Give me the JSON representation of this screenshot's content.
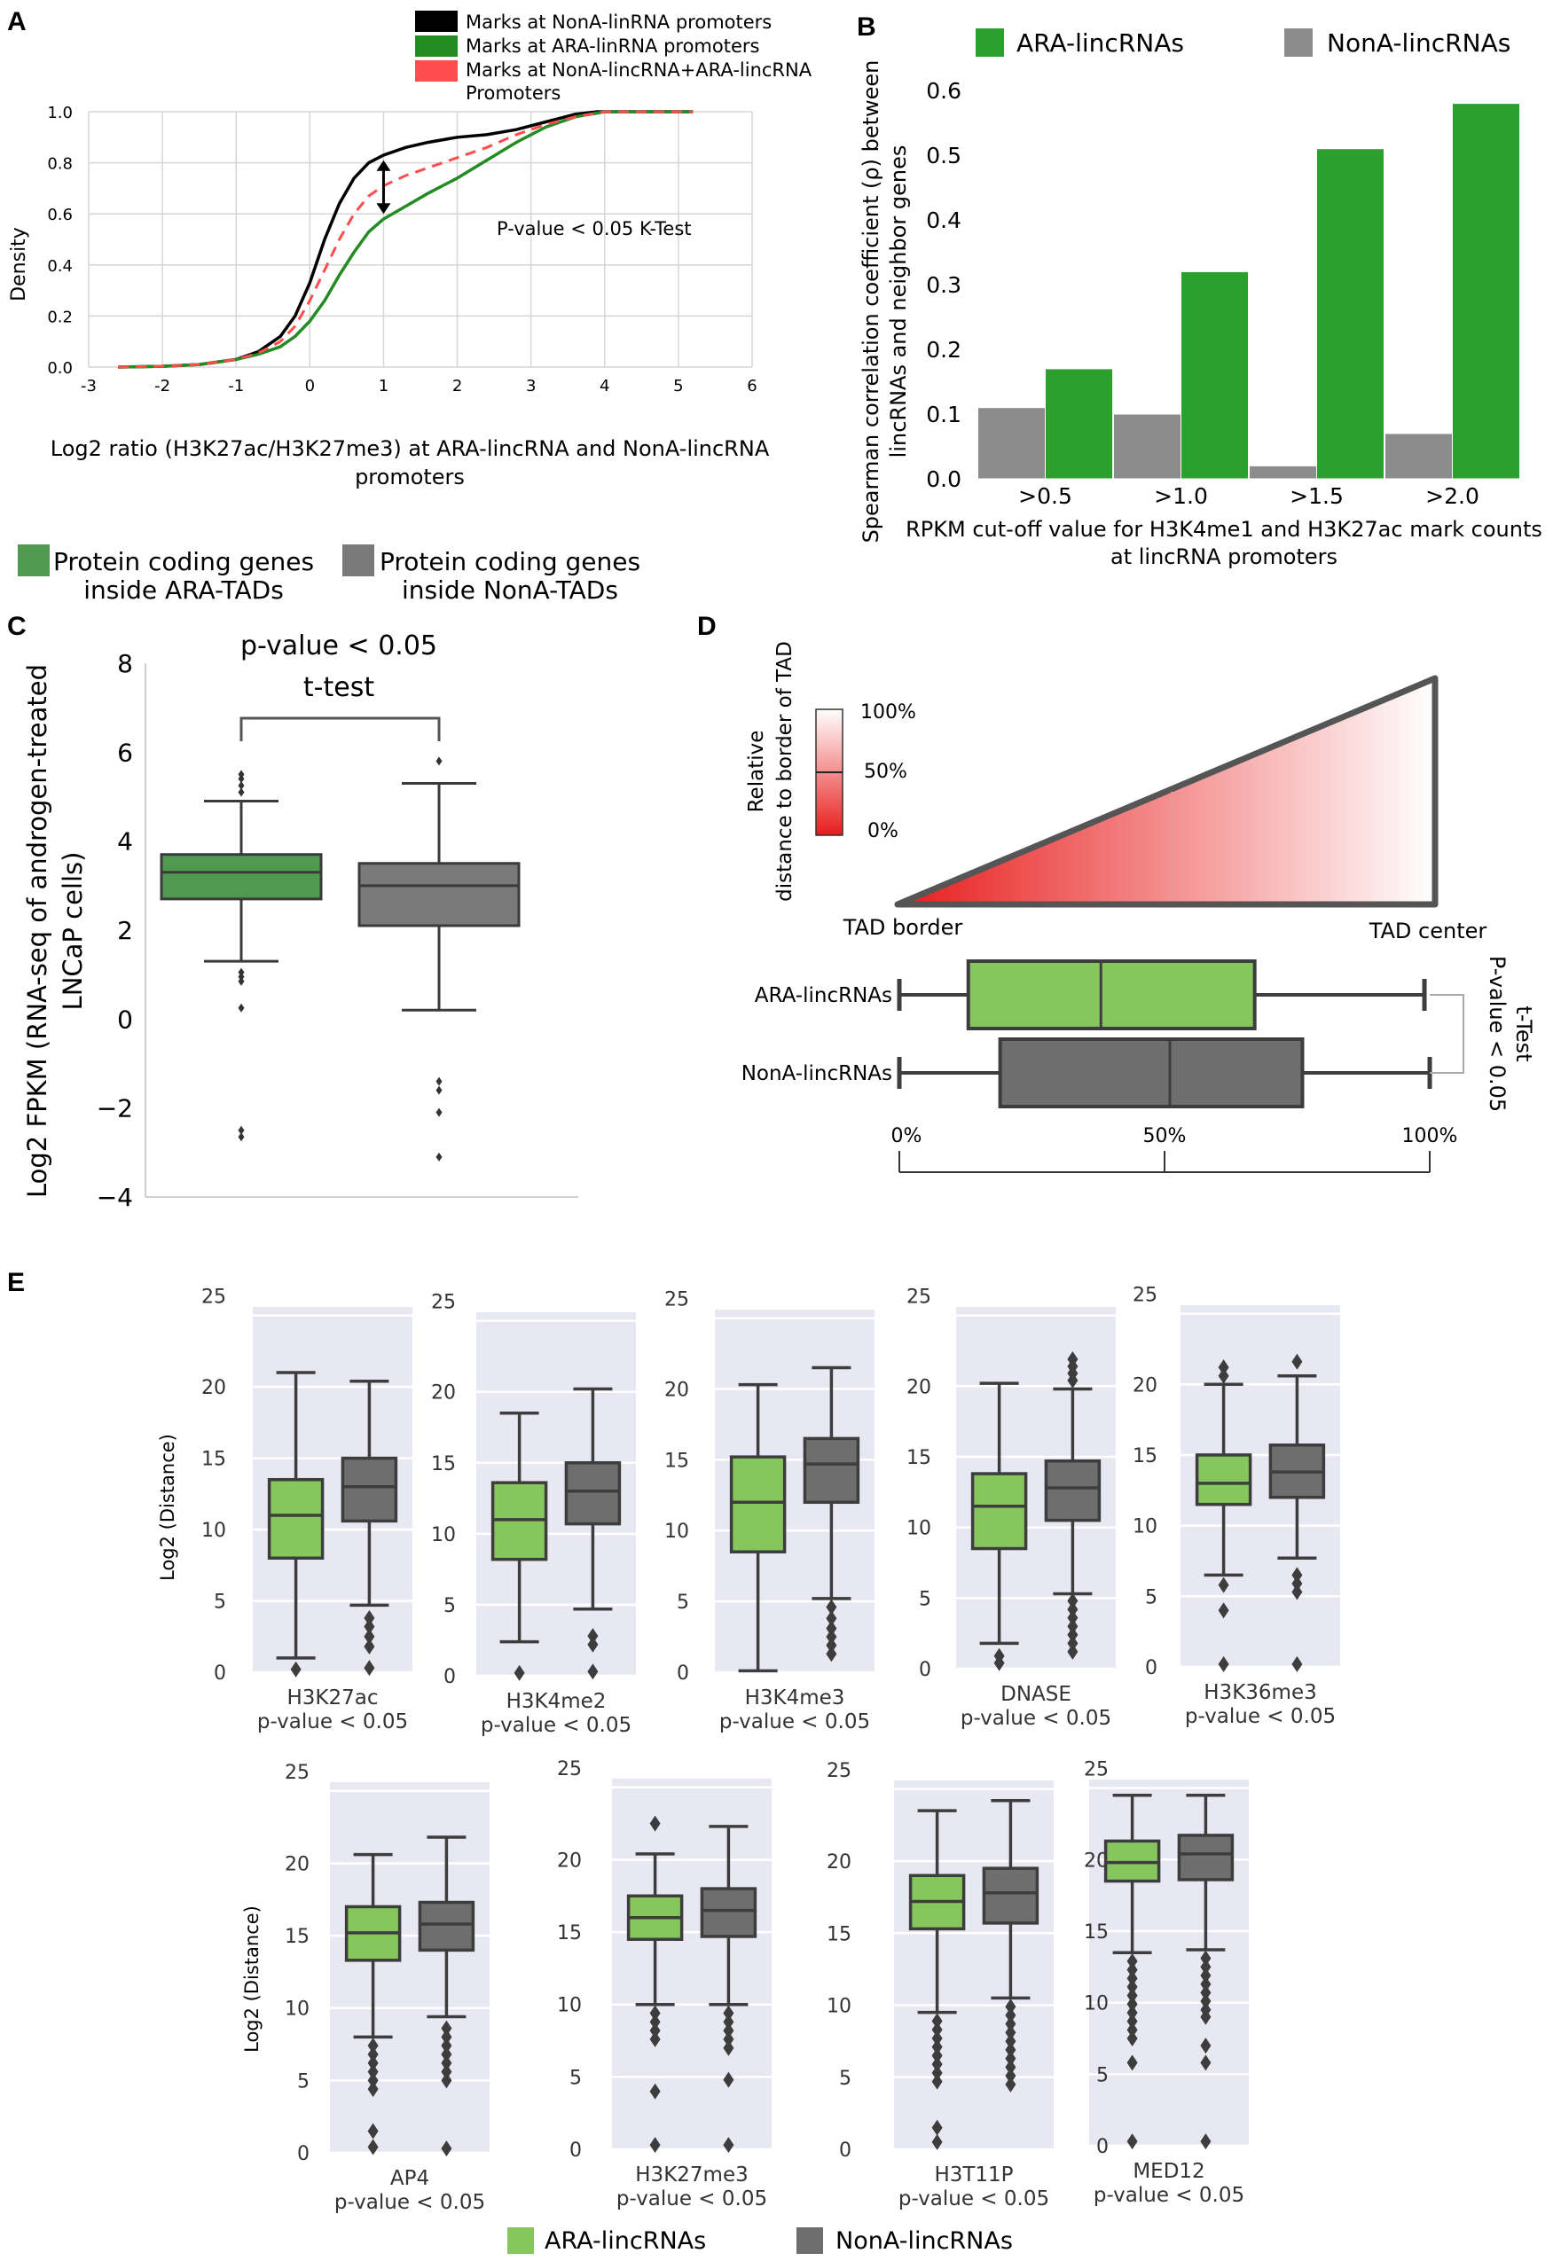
{
  "colors": {
    "black": "#000000",
    "green": "#228B22",
    "red": "#ff4c4c",
    "bar_green": "#2ca02c",
    "bar_gray": "#8c8c8c",
    "box_green": "#4f9a4f",
    "box_green_light": "#86c75d",
    "box_gray": "#7a7a7a",
    "box_gray_dark": "#6e6e6e",
    "e_bg": "#e8e8f2",
    "e_edge": "#3d3d3d"
  },
  "panel_labels": [
    "A",
    "B",
    "C",
    "D",
    "E"
  ],
  "panel_a": {
    "legend": [
      {
        "label": "Marks at NonA-linRNA promoters",
        "color": "#000000"
      },
      {
        "label": "Marks at ARA-linRNA promoters",
        "color": "#228B22"
      },
      {
        "label": "Marks at NonA-lincRNA+ARA-lincRNA",
        "color": "#ff4c4c"
      }
    ],
    "legend_extra": "Promoters",
    "annotation": "P-value < 0.05 K-Test",
    "xlabel_line1": "Log2 ratio (H3K27ac/H3K27me3) at ARA-lincRNA and NonA-lincRNA",
    "xlabel_line2": "promoters"
  },
  "panel_b": {
    "legend": [
      {
        "label": "ARA-lincRNAs",
        "color": "#2ca02c"
      },
      {
        "label": "NonA-lincRNAs",
        "color": "#8c8c8c"
      }
    ],
    "ylabel_line1": "Spearman correlation coefficient (ρ) between",
    "ylabel_line2": "lincRNAs and neighbor genes",
    "xlabel_line1": "RPKM cut-off value for H3K4me1 and H3K27ac mark counts",
    "xlabel_line2": "at lincRNA promoters"
  },
  "panel_c": {
    "legend": [
      {
        "line1": "Protein coding genes",
        "line2": "inside ARA-TADs",
        "color": "#4f9a4f"
      },
      {
        "line1": "Protein coding genes",
        "line2": "inside NonA-TADs",
        "color": "#7a7a7a"
      }
    ],
    "annotation_line1": "p-value < 0.05",
    "annotation_line2": "t-test",
    "ylabel_line1": "Log2 FPKM (RNA-seq of androgen-treated",
    "ylabel_line2": "LNCaP cells)"
  },
  "panel_d": {
    "scale_title_line1": "Relative",
    "scale_title_line2": "distance to border of TAD",
    "scale_labels": [
      "100%",
      "50%",
      "0%"
    ],
    "tad_border": "TAD border",
    "tad_center": "TAD center",
    "row_labels": [
      "ARA-lincRNAs",
      "NonA-lincRNAs"
    ],
    "axis_ticks": [
      "0%",
      "50%",
      "100%"
    ],
    "pvalue_line1": "P-value < 0.05",
    "pvalue_line2": "t-Test"
  },
  "panel_e": {
    "ylabel": "Log2 (Distance)",
    "pvalue": "p-value < 0.05",
    "legend": [
      {
        "label": "ARA-lincRNAs",
        "color": "#86c75d"
      },
      {
        "label": "NonA-lincRNAs",
        "color": "#6e6e6e"
      }
    ]
  },
  "chart_data": [
    {
      "panel": "A",
      "type": "line",
      "title": "",
      "xlabel": "Log2 ratio (H3K27ac/H3K27me3) at ARA-lincRNA and NonA-lincRNA promoters",
      "ylabel": "Density",
      "xlim": [
        -3,
        6
      ],
      "ylim": [
        0,
        1.0
      ],
      "xticks": [
        -3,
        -2,
        -1,
        0,
        1,
        2,
        3,
        4,
        5,
        6
      ],
      "yticks": [
        0.0,
        0.2,
        0.4,
        0.6,
        0.8,
        1.0
      ],
      "series": [
        {
          "name": "Marks at NonA-linRNA promoters",
          "color": "#000000",
          "dash": false,
          "x": [
            -2.6,
            -2,
            -1.5,
            -1,
            -0.7,
            -0.4,
            -0.2,
            0,
            0.2,
            0.4,
            0.6,
            0.8,
            1.0,
            1.3,
            1.6,
            2.0,
            2.4,
            2.8,
            3.2,
            3.6,
            3.9,
            4.5,
            5.2
          ],
          "y": [
            0.0,
            0.003,
            0.01,
            0.03,
            0.06,
            0.12,
            0.2,
            0.33,
            0.5,
            0.64,
            0.74,
            0.8,
            0.83,
            0.86,
            0.88,
            0.9,
            0.91,
            0.93,
            0.96,
            0.99,
            1.0,
            1.0,
            1.0
          ]
        },
        {
          "name": "Marks at ARA-linRNA promoters",
          "color": "#228B22",
          "dash": false,
          "x": [
            -2.6,
            -2,
            -1.5,
            -1,
            -0.7,
            -0.4,
            -0.2,
            0,
            0.2,
            0.4,
            0.6,
            0.8,
            1.0,
            1.3,
            1.6,
            2.0,
            2.4,
            2.8,
            3.2,
            3.6,
            4.0,
            4.5,
            5.2
          ],
          "y": [
            0.0,
            0.003,
            0.01,
            0.03,
            0.05,
            0.08,
            0.12,
            0.18,
            0.26,
            0.36,
            0.45,
            0.53,
            0.58,
            0.63,
            0.68,
            0.74,
            0.81,
            0.88,
            0.94,
            0.98,
            1.0,
            1.0,
            1.0
          ]
        },
        {
          "name": "Marks at NonA-lincRNA+ARA-lincRNA Promoters",
          "color": "#ff4c4c",
          "dash": true,
          "x": [
            -2.6,
            -2,
            -1.5,
            -1,
            -0.7,
            -0.4,
            -0.2,
            0,
            0.2,
            0.4,
            0.6,
            0.8,
            1.0,
            1.3,
            1.6,
            2.0,
            2.4,
            2.8,
            3.2,
            3.6,
            4.0,
            4.5,
            5.2
          ],
          "y": [
            0.0,
            0.003,
            0.01,
            0.03,
            0.055,
            0.1,
            0.16,
            0.26,
            0.38,
            0.5,
            0.6,
            0.67,
            0.71,
            0.75,
            0.78,
            0.82,
            0.86,
            0.91,
            0.95,
            0.98,
            1.0,
            1.0,
            1.0
          ]
        }
      ],
      "arrow": {
        "x": 1.0,
        "y_top": 0.81,
        "y_bottom": 0.6
      }
    },
    {
      "panel": "B",
      "type": "bar",
      "title": "",
      "categories": [
        ">0.5",
        ">1.0",
        ">1.5",
        ">2.0"
      ],
      "series": [
        {
          "name": "NonA-lincRNAs",
          "color": "#8c8c8c",
          "values": [
            0.11,
            0.1,
            0.02,
            0.07
          ]
        },
        {
          "name": "ARA-lincRNAs",
          "color": "#2ca02c",
          "values": [
            0.17,
            0.32,
            0.51,
            0.58
          ]
        }
      ],
      "xlabel": "RPKM cut-off value for H3K4me1 and H3K27ac mark counts at lincRNA promoters",
      "ylabel": "Spearman correlation coefficient (ρ) between lincRNAs and neighbor genes",
      "ylim": [
        0,
        0.6
      ],
      "yticks": [
        0.0,
        0.1,
        0.2,
        0.3,
        0.4,
        0.5,
        0.6
      ]
    },
    {
      "panel": "C",
      "type": "box",
      "ylabel": "Log2 FPKM (RNA-seq of androgen-treated LNCaP cells)",
      "ylim": [
        -4,
        8
      ],
      "yticks": [
        -4,
        -2,
        0,
        2,
        4,
        6,
        8
      ],
      "boxes": [
        {
          "name": "Protein coding genes inside ARA-TADs",
          "color": "#4f9a4f",
          "whislo": 1.3,
          "q1": 2.7,
          "med": 3.3,
          "q3": 3.7,
          "whishi": 4.9,
          "fliers": [
            5.1,
            5.25,
            5.4,
            5.5,
            1.05,
            0.95,
            0.85,
            0.25,
            -2.5,
            -2.65
          ]
        },
        {
          "name": "Protein coding genes inside NonA-TADs",
          "color": "#7a7a7a",
          "whislo": 0.2,
          "q1": 2.1,
          "med": 3.0,
          "q3": 3.5,
          "whishi": 5.3,
          "fliers": [
            5.8,
            -1.4,
            -1.6,
            -2.1,
            -3.1
          ]
        }
      ]
    },
    {
      "panel": "D",
      "type": "box",
      "orientation": "horizontal",
      "xlabel": "Relative distance to border of TAD",
      "xlim": [
        0,
        100
      ],
      "boxes": [
        {
          "name": "ARA-lincRNAs",
          "color": "#86c75d",
          "whislo": 0,
          "q1": 13,
          "med": 38,
          "q3": 67,
          "whishi": 99
        },
        {
          "name": "NonA-lincRNAs",
          "color": "#6e6e6e",
          "whislo": 0,
          "q1": 19,
          "med": 51,
          "q3": 76,
          "whishi": 100
        }
      ]
    },
    {
      "panel": "E",
      "type": "box",
      "ylabel": "Log2 (Distance)",
      "ylim": [
        0,
        25
      ],
      "yticks": [
        0,
        5,
        10,
        15,
        20,
        25
      ],
      "groups": [
        {
          "mark": "H3K27ac",
          "ara": {
            "whislo": 1,
            "q1": 8,
            "med": 11,
            "q3": 13.5,
            "whishi": 21,
            "fliers": [
              0.2
            ]
          },
          "nona": {
            "whislo": 4.7,
            "q1": 10.6,
            "med": 13,
            "q3": 15,
            "whishi": 20.4,
            "fliers": [
              3.8,
              3.2,
              2.5,
              1.8,
              0.3
            ]
          }
        },
        {
          "mark": "H3K4me2",
          "ara": {
            "whislo": 2.4,
            "q1": 8.2,
            "med": 11,
            "q3": 13.6,
            "whishi": 18.5,
            "fliers": [
              0.2
            ]
          },
          "nona": {
            "whislo": 4.7,
            "q1": 10.7,
            "med": 13,
            "q3": 15,
            "whishi": 20.2,
            "fliers": [
              2.8,
              2.2,
              0.3
            ]
          }
        },
        {
          "mark": "H3K4me3",
          "ara": {
            "whislo": 0.1,
            "q1": 8.5,
            "med": 12,
            "q3": 15.2,
            "whishi": 20.3,
            "fliers": []
          },
          "nona": {
            "whislo": 5.2,
            "q1": 12,
            "med": 14.7,
            "q3": 16.5,
            "whishi": 21.5,
            "fliers": [
              4.6,
              3.8,
              3.1,
              2.5,
              1.9,
              1.3
            ]
          }
        },
        {
          "mark": "DNASE",
          "ara": {
            "whislo": 1.8,
            "q1": 8.5,
            "med": 11.5,
            "q3": 13.8,
            "whishi": 20.2,
            "fliers": [
              0.9,
              0.4
            ]
          },
          "nona": {
            "whislo": 5.3,
            "q1": 10.5,
            "med": 12.8,
            "q3": 14.7,
            "whishi": 19.8,
            "fliers": [
              21.9,
              21.4,
              20.9,
              20.4,
              4.8,
              4.2,
              3.6,
              3.0,
              2.4,
              1.8,
              1.2
            ]
          }
        },
        {
          "mark": "H3K36me3",
          "ara": {
            "whislo": 6.5,
            "q1": 11.5,
            "med": 13,
            "q3": 15,
            "whishi": 20,
            "fliers": [
              21.2,
              20.6,
              5.8,
              4.0,
              0.2
            ]
          },
          "nona": {
            "whislo": 7.7,
            "q1": 12,
            "med": 13.8,
            "q3": 15.7,
            "whishi": 20.6,
            "fliers": [
              21.6,
              6.5,
              5.9,
              5.3,
              0.2
            ]
          }
        },
        {
          "mark": "AP4",
          "ara": {
            "whislo": 8,
            "q1": 13.3,
            "med": 15.2,
            "q3": 17,
            "whishi": 20.6,
            "fliers": [
              7.4,
              6.8,
              6.2,
              5.6,
              5.0,
              4.4,
              1.5,
              0.4
            ]
          },
          "nona": {
            "whislo": 9.4,
            "q1": 14,
            "med": 15.8,
            "q3": 17.3,
            "whishi": 21.8,
            "fliers": [
              8.6,
              8.0,
              7.4,
              6.8,
              6.2,
              5.6,
              5.0,
              0.3
            ]
          }
        },
        {
          "mark": "H3K27me3",
          "ara": {
            "whislo": 10,
            "q1": 14.5,
            "med": 16,
            "q3": 17.5,
            "whishi": 20.4,
            "fliers": [
              22.5,
              9.4,
              8.8,
              8.2,
              7.6,
              4.0,
              0.3
            ]
          },
          "nona": {
            "whislo": 10,
            "q1": 14.7,
            "med": 16.5,
            "q3": 18,
            "whishi": 22.3,
            "fliers": [
              9.4,
              8.8,
              8.2,
              7.6,
              7.0,
              4.8,
              0.3
            ]
          }
        },
        {
          "mark": "H3T11P",
          "ara": {
            "whislo": 9.5,
            "q1": 15.3,
            "med": 17.2,
            "q3": 19,
            "whishi": 23.5,
            "fliers": [
              8.9,
              8.3,
              7.7,
              7.1,
              6.5,
              5.9,
              5.3,
              4.7,
              1.5,
              0.5
            ]
          },
          "nona": {
            "whislo": 10.5,
            "q1": 15.7,
            "med": 17.8,
            "q3": 19.5,
            "whishi": 24.2,
            "fliers": [
              9.9,
              9.3,
              8.7,
              8.1,
              7.5,
              6.9,
              6.3,
              5.7,
              5.1,
              4.5
            ]
          }
        },
        {
          "mark": "MED12",
          "ara": {
            "whislo": 13.5,
            "q1": 18.5,
            "med": 19.8,
            "q3": 21.3,
            "whishi": 24.5,
            "fliers": [
              12.9,
              12.3,
              11.7,
              11.1,
              10.5,
              9.9,
              9.3,
              8.7,
              8.1,
              7.5,
              5.8,
              0.3
            ]
          },
          "nona": {
            "whislo": 13.7,
            "q1": 18.6,
            "med": 20.4,
            "q3": 21.7,
            "whishi": 24.5,
            "fliers": [
              13.1,
              12.5,
              11.9,
              11.3,
              10.7,
              10.1,
              9.5,
              9.0,
              7.0,
              5.8,
              0.3
            ]
          }
        }
      ]
    }
  ]
}
